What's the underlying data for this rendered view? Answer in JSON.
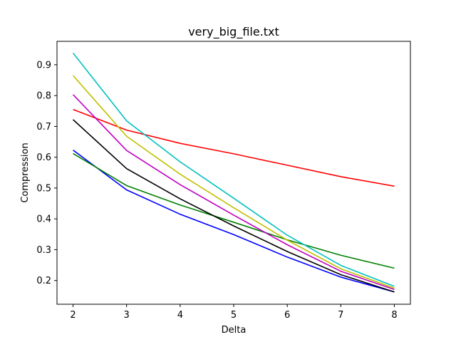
{
  "chart_data": {
    "type": "line",
    "title": "very_big_file.txt",
    "xlabel": "Delta",
    "ylabel": "Compression",
    "x": [
      2,
      3,
      4,
      5,
      6,
      7,
      8
    ],
    "xlim": [
      1.7,
      8.3
    ],
    "ylim": [
      0.123,
      0.976
    ],
    "xticks": [
      2,
      3,
      4,
      5,
      6,
      7,
      8
    ],
    "yticks": [
      0.2,
      0.3,
      0.4,
      0.5,
      0.6,
      0.7,
      0.8,
      0.9
    ],
    "ytick_labels": [
      "0.2",
      "0.3",
      "0.4",
      "0.5",
      "0.6",
      "0.7",
      "0.8",
      "0.9"
    ],
    "grid": false,
    "series": [
      {
        "color": "#0000ff",
        "values": [
          0.623,
          0.494,
          0.415,
          0.349,
          0.276,
          0.211,
          0.163
        ]
      },
      {
        "color": "#008000",
        "values": [
          0.612,
          0.508,
          0.445,
          0.389,
          0.332,
          0.282,
          0.24
        ]
      },
      {
        "color": "#ff0000",
        "values": [
          0.755,
          0.688,
          0.645,
          0.611,
          0.574,
          0.537,
          0.506
        ]
      },
      {
        "color": "#00bfbf",
        "values": [
          0.938,
          0.718,
          0.585,
          0.467,
          0.347,
          0.249,
          0.181
        ]
      },
      {
        "color": "#bf00bf",
        "values": [
          0.803,
          0.622,
          0.511,
          0.412,
          0.316,
          0.23,
          0.171
        ]
      },
      {
        "color": "#bfbf00",
        "values": [
          0.865,
          0.668,
          0.545,
          0.436,
          0.331,
          0.238,
          0.175
        ]
      },
      {
        "color": "#000000",
        "values": [
          0.722,
          0.563,
          0.465,
          0.377,
          0.294,
          0.219,
          0.163
        ]
      }
    ]
  }
}
